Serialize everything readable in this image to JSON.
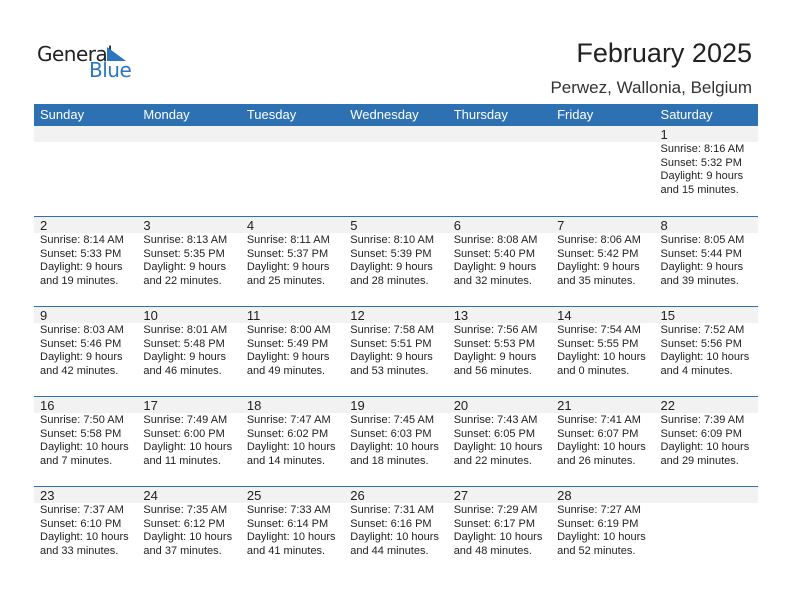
{
  "logo": {
    "text1": "General",
    "text2": "Blue"
  },
  "title": "February 2025",
  "location": "Perwez, Wallonia, Belgium",
  "colors": {
    "header": "#2e71b3",
    "brand": "#2b76c0",
    "day_band": "#f2f2f2"
  },
  "days": [
    "Sunday",
    "Monday",
    "Tuesday",
    "Wednesday",
    "Thursday",
    "Friday",
    "Saturday"
  ],
  "weeks": [
    [
      {},
      {},
      {},
      {},
      {},
      {},
      {
        "day": "1",
        "sunrise": "Sunrise: 8:16 AM",
        "sunset": "Sunset: 5:32 PM",
        "daylight": "Daylight: 9 hours",
        "minutes": "and 15 minutes."
      }
    ],
    [
      {
        "day": "2",
        "sunrise": "Sunrise: 8:14 AM",
        "sunset": "Sunset: 5:33 PM",
        "daylight": "Daylight: 9 hours",
        "minutes": "and 19 minutes."
      },
      {
        "day": "3",
        "sunrise": "Sunrise: 8:13 AM",
        "sunset": "Sunset: 5:35 PM",
        "daylight": "Daylight: 9 hours",
        "minutes": "and 22 minutes."
      },
      {
        "day": "4",
        "sunrise": "Sunrise: 8:11 AM",
        "sunset": "Sunset: 5:37 PM",
        "daylight": "Daylight: 9 hours",
        "minutes": "and 25 minutes."
      },
      {
        "day": "5",
        "sunrise": "Sunrise: 8:10 AM",
        "sunset": "Sunset: 5:39 PM",
        "daylight": "Daylight: 9 hours",
        "minutes": "and 28 minutes."
      },
      {
        "day": "6",
        "sunrise": "Sunrise: 8:08 AM",
        "sunset": "Sunset: 5:40 PM",
        "daylight": "Daylight: 9 hours",
        "minutes": "and 32 minutes."
      },
      {
        "day": "7",
        "sunrise": "Sunrise: 8:06 AM",
        "sunset": "Sunset: 5:42 PM",
        "daylight": "Daylight: 9 hours",
        "minutes": "and 35 minutes."
      },
      {
        "day": "8",
        "sunrise": "Sunrise: 8:05 AM",
        "sunset": "Sunset: 5:44 PM",
        "daylight": "Daylight: 9 hours",
        "minutes": "and 39 minutes."
      }
    ],
    [
      {
        "day": "9",
        "sunrise": "Sunrise: 8:03 AM",
        "sunset": "Sunset: 5:46 PM",
        "daylight": "Daylight: 9 hours",
        "minutes": "and 42 minutes."
      },
      {
        "day": "10",
        "sunrise": "Sunrise: 8:01 AM",
        "sunset": "Sunset: 5:48 PM",
        "daylight": "Daylight: 9 hours",
        "minutes": "and 46 minutes."
      },
      {
        "day": "11",
        "sunrise": "Sunrise: 8:00 AM",
        "sunset": "Sunset: 5:49 PM",
        "daylight": "Daylight: 9 hours",
        "minutes": "and 49 minutes."
      },
      {
        "day": "12",
        "sunrise": "Sunrise: 7:58 AM",
        "sunset": "Sunset: 5:51 PM",
        "daylight": "Daylight: 9 hours",
        "minutes": "and 53 minutes."
      },
      {
        "day": "13",
        "sunrise": "Sunrise: 7:56 AM",
        "sunset": "Sunset: 5:53 PM",
        "daylight": "Daylight: 9 hours",
        "minutes": "and 56 minutes."
      },
      {
        "day": "14",
        "sunrise": "Sunrise: 7:54 AM",
        "sunset": "Sunset: 5:55 PM",
        "daylight": "Daylight: 10 hours",
        "minutes": "and 0 minutes."
      },
      {
        "day": "15",
        "sunrise": "Sunrise: 7:52 AM",
        "sunset": "Sunset: 5:56 PM",
        "daylight": "Daylight: 10 hours",
        "minutes": "and 4 minutes."
      }
    ],
    [
      {
        "day": "16",
        "sunrise": "Sunrise: 7:50 AM",
        "sunset": "Sunset: 5:58 PM",
        "daylight": "Daylight: 10 hours",
        "minutes": "and 7 minutes."
      },
      {
        "day": "17",
        "sunrise": "Sunrise: 7:49 AM",
        "sunset": "Sunset: 6:00 PM",
        "daylight": "Daylight: 10 hours",
        "minutes": "and 11 minutes."
      },
      {
        "day": "18",
        "sunrise": "Sunrise: 7:47 AM",
        "sunset": "Sunset: 6:02 PM",
        "daylight": "Daylight: 10 hours",
        "minutes": "and 14 minutes."
      },
      {
        "day": "19",
        "sunrise": "Sunrise: 7:45 AM",
        "sunset": "Sunset: 6:03 PM",
        "daylight": "Daylight: 10 hours",
        "minutes": "and 18 minutes."
      },
      {
        "day": "20",
        "sunrise": "Sunrise: 7:43 AM",
        "sunset": "Sunset: 6:05 PM",
        "daylight": "Daylight: 10 hours",
        "minutes": "and 22 minutes."
      },
      {
        "day": "21",
        "sunrise": "Sunrise: 7:41 AM",
        "sunset": "Sunset: 6:07 PM",
        "daylight": "Daylight: 10 hours",
        "minutes": "and 26 minutes."
      },
      {
        "day": "22",
        "sunrise": "Sunrise: 7:39 AM",
        "sunset": "Sunset: 6:09 PM",
        "daylight": "Daylight: 10 hours",
        "minutes": "and 29 minutes."
      }
    ],
    [
      {
        "day": "23",
        "sunrise": "Sunrise: 7:37 AM",
        "sunset": "Sunset: 6:10 PM",
        "daylight": "Daylight: 10 hours",
        "minutes": "and 33 minutes."
      },
      {
        "day": "24",
        "sunrise": "Sunrise: 7:35 AM",
        "sunset": "Sunset: 6:12 PM",
        "daylight": "Daylight: 10 hours",
        "minutes": "and 37 minutes."
      },
      {
        "day": "25",
        "sunrise": "Sunrise: 7:33 AM",
        "sunset": "Sunset: 6:14 PM",
        "daylight": "Daylight: 10 hours",
        "minutes": "and 41 minutes."
      },
      {
        "day": "26",
        "sunrise": "Sunrise: 7:31 AM",
        "sunset": "Sunset: 6:16 PM",
        "daylight": "Daylight: 10 hours",
        "minutes": "and 44 minutes."
      },
      {
        "day": "27",
        "sunrise": "Sunrise: 7:29 AM",
        "sunset": "Sunset: 6:17 PM",
        "daylight": "Daylight: 10 hours",
        "minutes": "and 48 minutes."
      },
      {
        "day": "28",
        "sunrise": "Sunrise: 7:27 AM",
        "sunset": "Sunset: 6:19 PM",
        "daylight": "Daylight: 10 hours",
        "minutes": "and 52 minutes."
      },
      {}
    ]
  ]
}
